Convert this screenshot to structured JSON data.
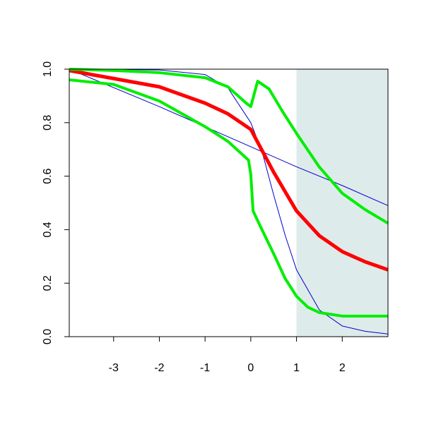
{
  "chart_data": {
    "type": "line",
    "xlim": [
      -3.97,
      3
    ],
    "ylim": [
      0,
      1
    ],
    "xticks": [
      -3,
      -2,
      -1,
      0,
      1,
      2
    ],
    "yticks": [
      {
        "value": 0,
        "label": "0.0"
      },
      {
        "value": 0.2,
        "label": "0.2"
      },
      {
        "value": 0.4,
        "label": "0.4"
      },
      {
        "value": 0.6,
        "label": "0.6"
      },
      {
        "value": 0.8,
        "label": "0.8"
      },
      {
        "value": 1,
        "label": "1.0"
      }
    ],
    "shaded_region": {
      "xlim": [
        1,
        3
      ],
      "color": "#deebeb"
    },
    "series": [
      {
        "color": "#0000cc",
        "width": 1,
        "x": [
          -3.97,
          -3,
          -2,
          -1,
          -0.5,
          0,
          0.25,
          0.5,
          0.75,
          1,
          1.5,
          2,
          2.5,
          3
        ],
        "values": [
          1,
          0.999,
          0.997,
          0.98,
          0.93,
          0.8,
          0.69,
          0.53,
          0.38,
          0.25,
          0.1,
          0.04,
          0.02,
          0.01
        ]
      },
      {
        "color": "#0000cc",
        "width": 1,
        "x": [
          -3.97,
          -2,
          0,
          1,
          2,
          3
        ],
        "values": [
          1,
          0.86,
          0.71,
          0.635,
          0.565,
          0.49
        ]
      },
      {
        "color": "#ff0000",
        "width": 5,
        "x": [
          -3.97,
          -3,
          -2,
          -1,
          -0.5,
          0,
          0.25,
          0.5,
          1,
          1.5,
          2,
          2.5,
          3
        ],
        "values": [
          0.995,
          0.965,
          0.934,
          0.873,
          0.833,
          0.775,
          0.695,
          0.615,
          0.47,
          0.377,
          0.318,
          0.28,
          0.25
        ]
      },
      {
        "color": "#00ee00",
        "width": 4,
        "x": [
          -3.97,
          -3,
          -2,
          -1,
          -0.5,
          -0.1,
          0,
          0.15,
          0.4,
          0.7,
          1,
          1.5,
          2,
          2.5,
          3
        ],
        "values": [
          1,
          0.995,
          0.987,
          0.968,
          0.934,
          0.873,
          0.86,
          0.955,
          0.926,
          0.84,
          0.76,
          0.634,
          0.536,
          0.475,
          0.424
        ]
      },
      {
        "color": "#00ee00",
        "width": 4,
        "x": [
          -3.97,
          -3,
          -2,
          -1,
          -0.5,
          -0.05,
          0,
          0.05,
          0.2,
          0.5,
          0.75,
          1,
          1.25,
          1.5,
          2,
          3
        ],
        "values": [
          0.96,
          0.943,
          0.881,
          0.785,
          0.73,
          0.66,
          0.607,
          0.47,
          0.416,
          0.31,
          0.218,
          0.151,
          0.11,
          0.09,
          0.077,
          0.077
        ]
      }
    ]
  }
}
